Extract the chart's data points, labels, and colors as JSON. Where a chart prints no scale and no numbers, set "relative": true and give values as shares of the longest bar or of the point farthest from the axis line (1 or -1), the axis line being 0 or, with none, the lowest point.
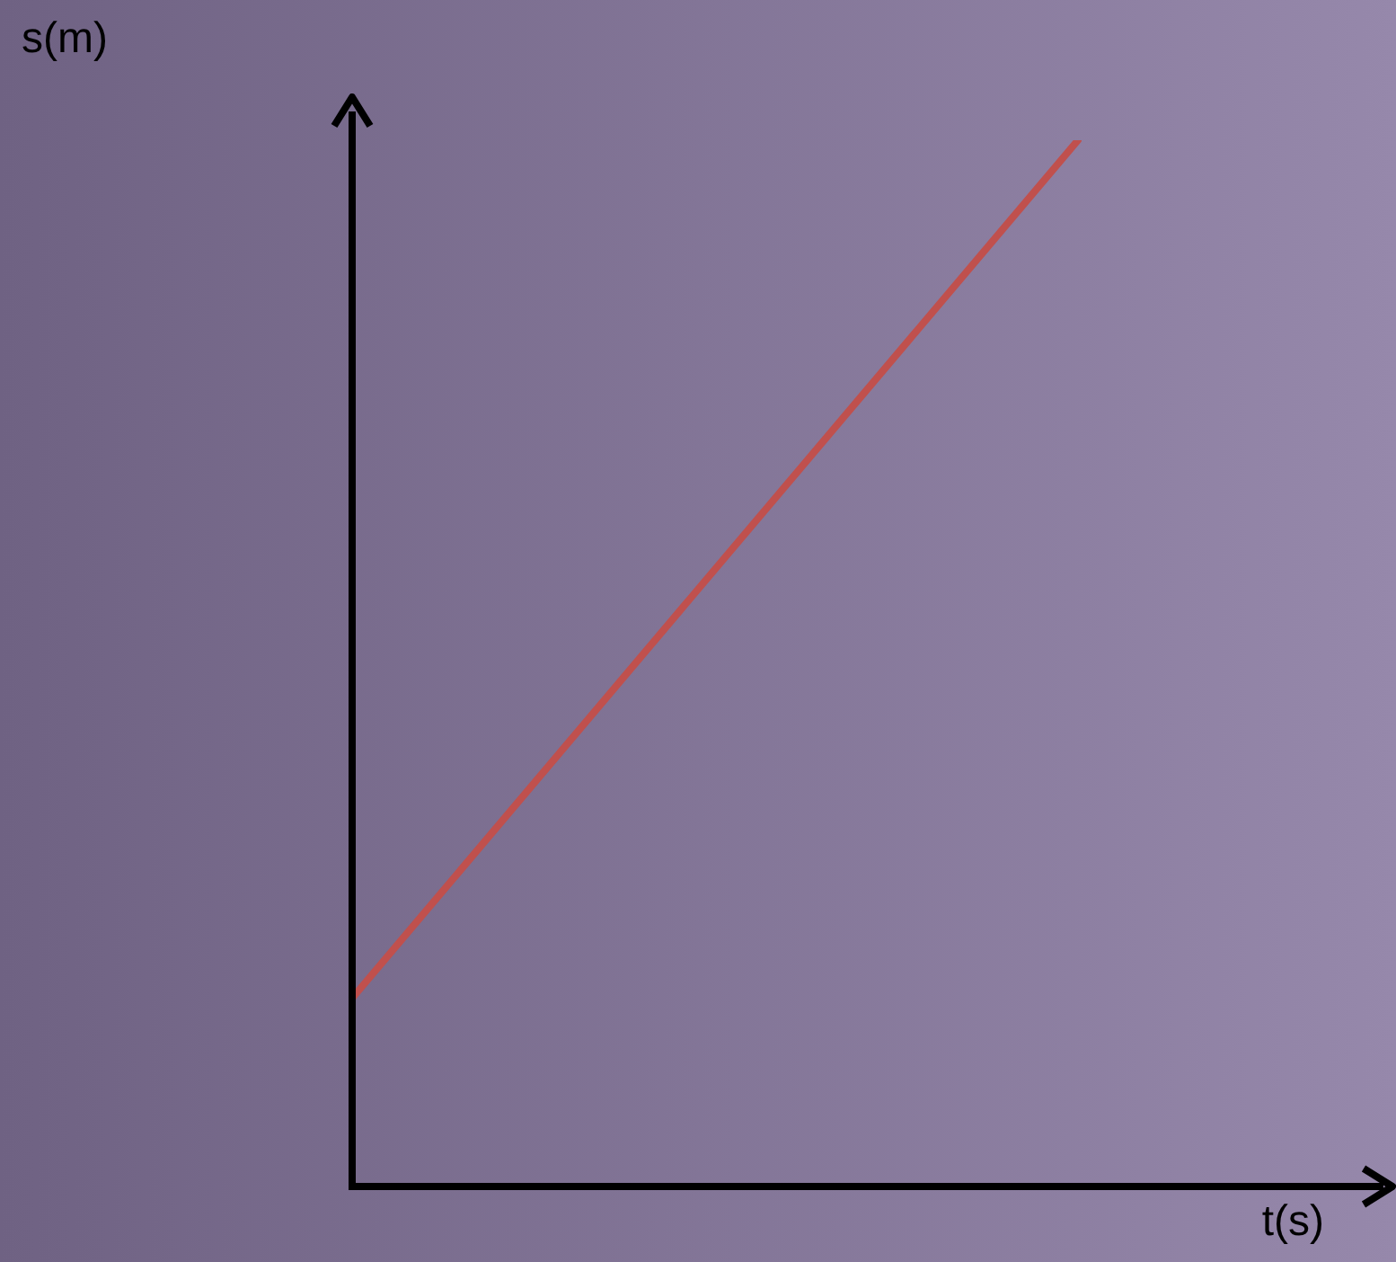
{
  "chart_data": {
    "type": "line",
    "xlabel": "t(s)",
    "annotations": [
      "s(m)"
    ],
    "relative": true,
    "categories": [
      null,
      null
    ],
    "series": [
      {
        "color": "#c0504d",
        "values": [
          0.18,
          1
        ]
      }
    ],
    "legend": false,
    "marker": "none",
    "line_style": "solid"
  }
}
